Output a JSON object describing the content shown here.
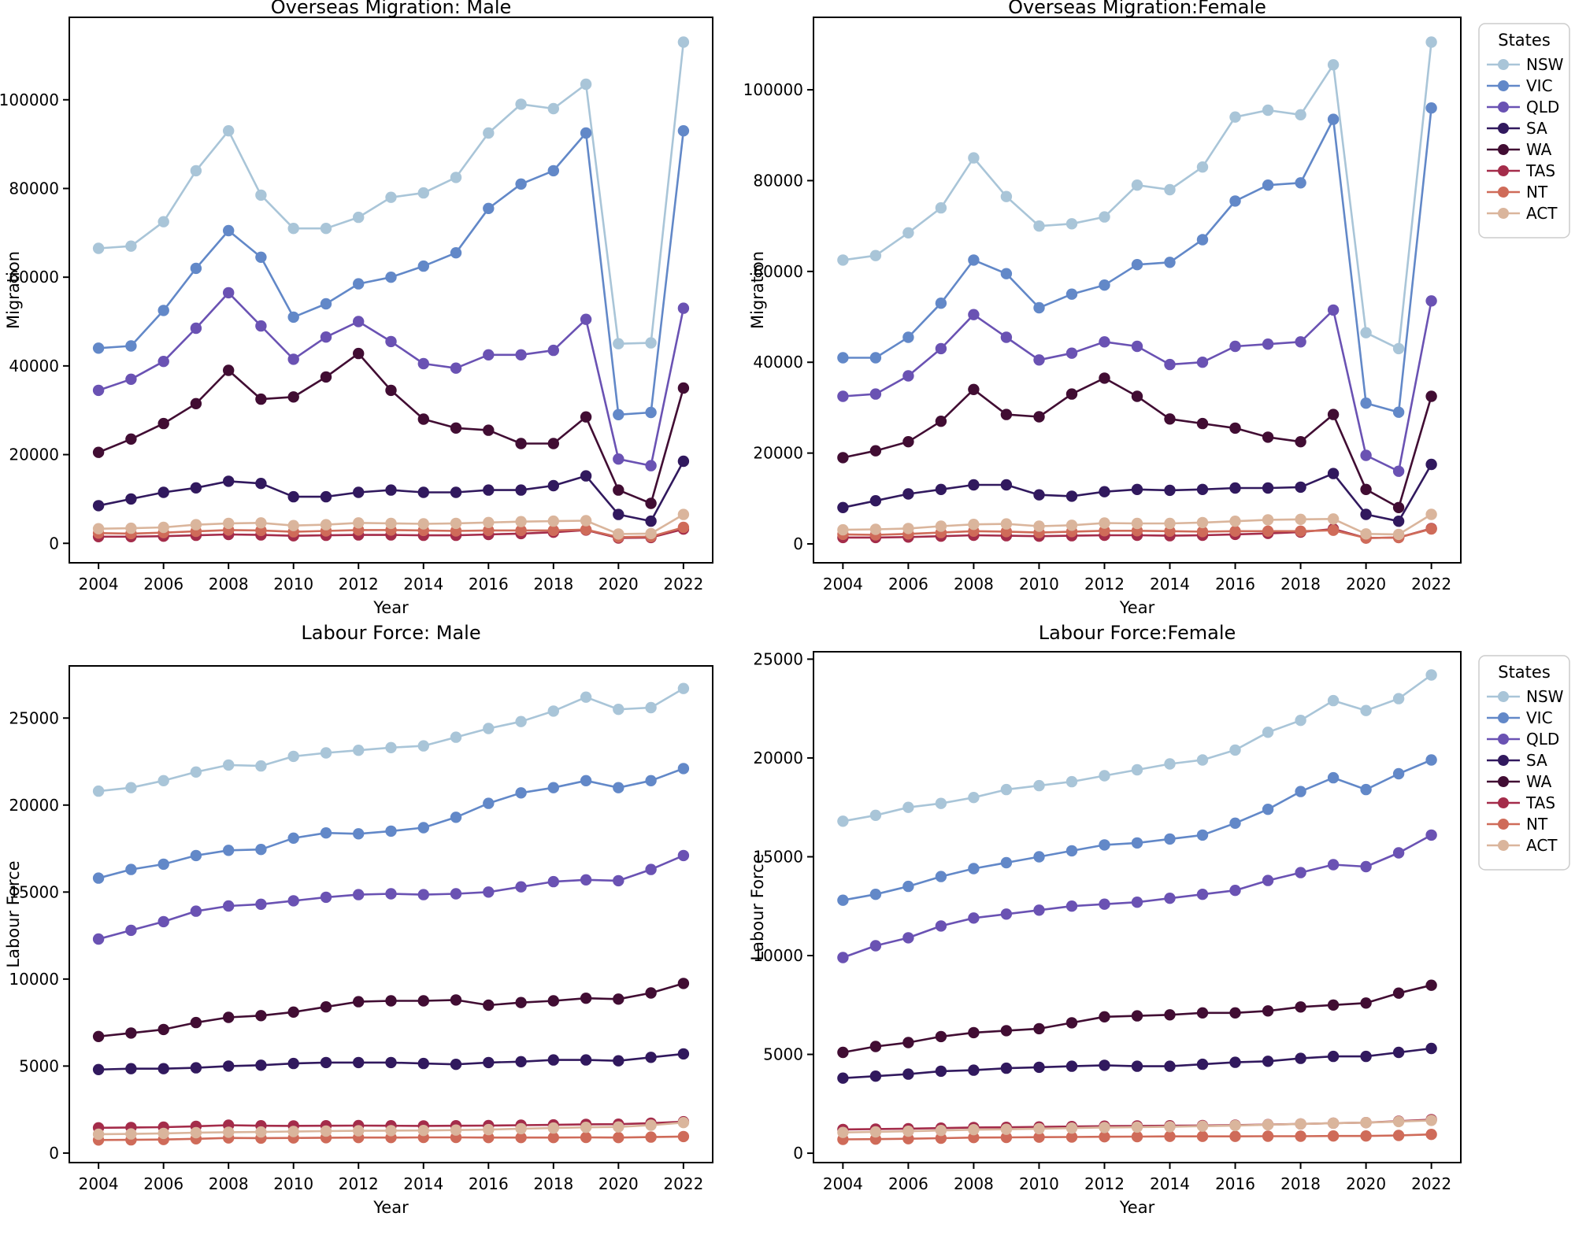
{
  "figure": {
    "background": "#ffffff",
    "text_color": "#000000",
    "spine_color": "#000000",
    "legend": {
      "title": "States",
      "border_color": "#cccccc",
      "background": "#ffffff"
    },
    "states": [
      "NSW",
      "VIC",
      "QLD",
      "SA",
      "WA",
      "TAS",
      "NT",
      "ACT"
    ],
    "state_colors": {
      "NSW": "#a9c5d8",
      "VIC": "#6288c8",
      "QLD": "#6a52b3",
      "SA": "#31195e",
      "WA": "#410d33",
      "TAS": "#a42c4a",
      "NT": "#cf6b59",
      "ACT": "#dab59c"
    }
  },
  "chart_data": [
    {
      "type": "line",
      "title": "Overseas Migration: Male",
      "xlabel": "Year",
      "ylabel": "Migration",
      "grid": false,
      "legend_position": "none",
      "x": [
        2004,
        2005,
        2006,
        2007,
        2008,
        2009,
        2010,
        2011,
        2012,
        2013,
        2014,
        2015,
        2016,
        2017,
        2018,
        2019,
        2020,
        2021,
        2022
      ],
      "xtick_step": 2,
      "ytick_step": 20000,
      "series": [
        {
          "name": "NSW",
          "values": [
            66500,
            67000,
            72500,
            84000,
            93000,
            78500,
            71000,
            71000,
            73500,
            78000,
            79000,
            82500,
            92500,
            99000,
            98000,
            103500,
            45000,
            45200,
            113000
          ]
        },
        {
          "name": "VIC",
          "values": [
            44000,
            44500,
            52500,
            62000,
            70500,
            64500,
            51000,
            54000,
            58500,
            60000,
            62500,
            65500,
            75500,
            81000,
            84000,
            92500,
            29000,
            29500,
            93000
          ]
        },
        {
          "name": "QLD",
          "values": [
            34500,
            37000,
            41000,
            48500,
            56500,
            49000,
            41500,
            46500,
            50000,
            45500,
            40500,
            39500,
            42500,
            42500,
            43500,
            50500,
            19000,
            17500,
            53000
          ]
        },
        {
          "name": "SA",
          "values": [
            8500,
            10000,
            11500,
            12500,
            14000,
            13500,
            10500,
            10500,
            11500,
            12000,
            11500,
            11500,
            12000,
            12000,
            13000,
            15200,
            6500,
            5000,
            18500
          ]
        },
        {
          "name": "WA",
          "values": [
            20500,
            23500,
            27000,
            31500,
            39000,
            32500,
            33000,
            37500,
            42800,
            34500,
            28000,
            26000,
            25500,
            22500,
            22500,
            28500,
            12000,
            9000,
            35000
          ]
        },
        {
          "name": "TAS",
          "values": [
            1500,
            1500,
            1600,
            1800,
            2000,
            1900,
            1700,
            1800,
            1900,
            1900,
            1800,
            1800,
            2000,
            2200,
            2500,
            3000,
            1200,
            1300,
            3200
          ]
        },
        {
          "name": "NT",
          "values": [
            2300,
            2200,
            2400,
            2700,
            3000,
            2900,
            2600,
            2800,
            3000,
            3000,
            2900,
            2800,
            2900,
            2900,
            2900,
            3100,
            1400,
            1500,
            3600
          ]
        },
        {
          "name": "ACT",
          "values": [
            3300,
            3400,
            3600,
            4200,
            4500,
            4600,
            4000,
            4200,
            4600,
            4500,
            4400,
            4500,
            4700,
            4900,
            5000,
            5100,
            2100,
            2200,
            6500
          ]
        }
      ]
    },
    {
      "type": "line",
      "title": "Overseas Migration:Female",
      "xlabel": "Year",
      "ylabel": "Migration",
      "grid": false,
      "legend_position": "right-top",
      "x": [
        2004,
        2005,
        2006,
        2007,
        2008,
        2009,
        2010,
        2011,
        2012,
        2013,
        2014,
        2015,
        2016,
        2017,
        2018,
        2019,
        2020,
        2021,
        2022
      ],
      "xtick_step": 2,
      "ytick_step": 20000,
      "series": [
        {
          "name": "NSW",
          "values": [
            62500,
            63500,
            68500,
            74000,
            85000,
            76500,
            70000,
            70500,
            72000,
            79000,
            78000,
            83000,
            94000,
            95500,
            94500,
            105500,
            46500,
            43000,
            110500
          ]
        },
        {
          "name": "VIC",
          "values": [
            41000,
            41000,
            45500,
            53000,
            62500,
            59500,
            52000,
            55000,
            57000,
            61500,
            62000,
            67000,
            75500,
            79000,
            79500,
            93500,
            31000,
            29000,
            96000
          ]
        },
        {
          "name": "QLD",
          "values": [
            32500,
            33000,
            37000,
            43000,
            50500,
            45500,
            40500,
            42000,
            44500,
            43500,
            39500,
            40000,
            43500,
            44000,
            44500,
            51500,
            19500,
            16000,
            53500
          ]
        },
        {
          "name": "SA",
          "values": [
            8000,
            9500,
            11000,
            12000,
            13000,
            13000,
            10800,
            10500,
            11500,
            12000,
            11800,
            12000,
            12300,
            12300,
            12500,
            15500,
            6500,
            5000,
            17500
          ]
        },
        {
          "name": "WA",
          "values": [
            19000,
            20500,
            22500,
            27000,
            34000,
            28500,
            28000,
            33000,
            36500,
            32500,
            27500,
            26500,
            25500,
            23500,
            22500,
            28500,
            12000,
            8000,
            32500
          ]
        },
        {
          "name": "TAS",
          "values": [
            1400,
            1400,
            1500,
            1700,
            1900,
            1800,
            1700,
            1800,
            1900,
            1900,
            1800,
            1900,
            2100,
            2300,
            2600,
            3300,
            1300,
            1400,
            3400
          ]
        },
        {
          "name": "NT",
          "values": [
            2100,
            2000,
            2200,
            2500,
            2800,
            2700,
            2500,
            2700,
            2900,
            2900,
            2800,
            2700,
            2800,
            2800,
            2800,
            3000,
            1300,
            1400,
            3300
          ]
        },
        {
          "name": "ACT",
          "values": [
            3100,
            3200,
            3400,
            3900,
            4300,
            4400,
            3900,
            4100,
            4600,
            4500,
            4500,
            4700,
            5000,
            5300,
            5400,
            5500,
            2200,
            2100,
            6500
          ]
        }
      ]
    },
    {
      "type": "line",
      "title": "Labour Force: Male",
      "xlabel": "Year",
      "ylabel": "Labour Force",
      "grid": false,
      "legend_position": "none",
      "x": [
        2004,
        2005,
        2006,
        2007,
        2008,
        2009,
        2010,
        2011,
        2012,
        2013,
        2014,
        2015,
        2016,
        2017,
        2018,
        2019,
        2020,
        2021,
        2022
      ],
      "xtick_step": 2,
      "ytick_step": 5000,
      "series": [
        {
          "name": "NSW",
          "values": [
            20800,
            21000,
            21400,
            21900,
            22300,
            22250,
            22800,
            23000,
            23150,
            23300,
            23400,
            23900,
            24400,
            24800,
            25400,
            26200,
            25500,
            25600,
            26700
          ]
        },
        {
          "name": "VIC",
          "values": [
            15800,
            16300,
            16600,
            17100,
            17400,
            17450,
            18100,
            18400,
            18350,
            18500,
            18700,
            19300,
            20100,
            20700,
            21000,
            21400,
            21000,
            21400,
            22100
          ]
        },
        {
          "name": "QLD",
          "values": [
            12300,
            12800,
            13300,
            13900,
            14200,
            14300,
            14500,
            14700,
            14850,
            14900,
            14850,
            14900,
            15000,
            15300,
            15600,
            15700,
            15650,
            16300,
            17100
          ]
        },
        {
          "name": "SA",
          "values": [
            4800,
            4850,
            4850,
            4900,
            5000,
            5050,
            5150,
            5200,
            5200,
            5200,
            5150,
            5100,
            5200,
            5250,
            5350,
            5350,
            5300,
            5500,
            5700
          ]
        },
        {
          "name": "WA",
          "values": [
            6700,
            6900,
            7100,
            7500,
            7800,
            7900,
            8100,
            8400,
            8700,
            8750,
            8750,
            8800,
            8500,
            8650,
            8750,
            8900,
            8850,
            9200,
            9750
          ]
        },
        {
          "name": "TAS",
          "values": [
            1450,
            1470,
            1490,
            1540,
            1600,
            1570,
            1560,
            1570,
            1580,
            1570,
            1560,
            1570,
            1580,
            1600,
            1620,
            1650,
            1660,
            1720,
            1800
          ]
        },
        {
          "name": "NT",
          "values": [
            750,
            760,
            780,
            820,
            870,
            860,
            870,
            880,
            890,
            890,
            900,
            900,
            890,
            890,
            890,
            900,
            890,
            920,
            950
          ]
        },
        {
          "name": "ACT",
          "values": [
            1080,
            1100,
            1130,
            1170,
            1200,
            1210,
            1240,
            1260,
            1280,
            1290,
            1300,
            1320,
            1350,
            1400,
            1440,
            1480,
            1500,
            1600,
            1750
          ]
        }
      ]
    },
    {
      "type": "line",
      "title": "Labour Force:Female",
      "xlabel": "Year",
      "ylabel": "Labour Force",
      "grid": false,
      "legend_position": "right-top",
      "x": [
        2004,
        2005,
        2006,
        2007,
        2008,
        2009,
        2010,
        2011,
        2012,
        2013,
        2014,
        2015,
        2016,
        2017,
        2018,
        2019,
        2020,
        2021,
        2022
      ],
      "xtick_step": 2,
      "ytick_step": 5000,
      "series": [
        {
          "name": "NSW",
          "values": [
            16800,
            17100,
            17500,
            17700,
            18000,
            18400,
            18600,
            18800,
            19100,
            19400,
            19700,
            19900,
            20400,
            21300,
            21900,
            22900,
            22400,
            23000,
            24200
          ]
        },
        {
          "name": "VIC",
          "values": [
            12800,
            13100,
            13500,
            14000,
            14400,
            14700,
            15000,
            15300,
            15600,
            15700,
            15900,
            16100,
            16700,
            17400,
            18300,
            19000,
            18400,
            19200,
            19900
          ]
        },
        {
          "name": "QLD",
          "values": [
            9900,
            10500,
            10900,
            11500,
            11900,
            12100,
            12300,
            12500,
            12600,
            12700,
            12900,
            13100,
            13300,
            13800,
            14200,
            14600,
            14500,
            15200,
            16100
          ]
        },
        {
          "name": "SA",
          "values": [
            3800,
            3900,
            4000,
            4150,
            4200,
            4300,
            4350,
            4400,
            4450,
            4400,
            4400,
            4500,
            4600,
            4650,
            4800,
            4900,
            4900,
            5100,
            5300
          ]
        },
        {
          "name": "WA",
          "values": [
            5100,
            5400,
            5600,
            5900,
            6100,
            6200,
            6300,
            6600,
            6900,
            6950,
            7000,
            7100,
            7100,
            7200,
            7400,
            7500,
            7600,
            8100,
            8500
          ]
        },
        {
          "name": "TAS",
          "values": [
            1200,
            1220,
            1240,
            1270,
            1300,
            1310,
            1330,
            1350,
            1370,
            1380,
            1390,
            1400,
            1420,
            1450,
            1480,
            1520,
            1550,
            1620,
            1700
          ]
        },
        {
          "name": "NT",
          "values": [
            700,
            710,
            730,
            760,
            790,
            800,
            810,
            820,
            830,
            840,
            850,
            850,
            850,
            860,
            860,
            870,
            870,
            900,
            950
          ]
        },
        {
          "name": "ACT",
          "values": [
            1050,
            1080,
            1110,
            1150,
            1190,
            1210,
            1240,
            1270,
            1300,
            1320,
            1340,
            1370,
            1400,
            1440,
            1480,
            1520,
            1550,
            1600,
            1660
          ]
        }
      ]
    }
  ]
}
